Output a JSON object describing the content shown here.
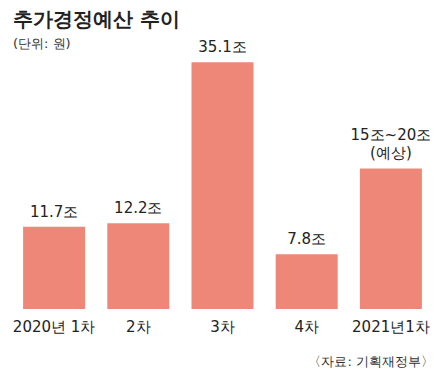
{
  "chart_data": {
    "type": "bar",
    "title": "추가경정예산 추이",
    "subtitle": "(단위: 원)",
    "source": "〈자료: 기획재정부〉",
    "categories": [
      "2020년 1차",
      "2차",
      "3차",
      "4차",
      "2021년1차"
    ],
    "values": [
      11.7,
      12.2,
      35.1,
      7.8,
      20
    ],
    "value_labels": [
      "11.7조",
      "12.2조",
      "35.1조",
      "7.8조",
      "15조~20조\n(예상)"
    ],
    "color": "#ef8779",
    "ylim": [
      0,
      36
    ],
    "grid": false,
    "data_labels": true,
    "tick_labels": "x"
  }
}
